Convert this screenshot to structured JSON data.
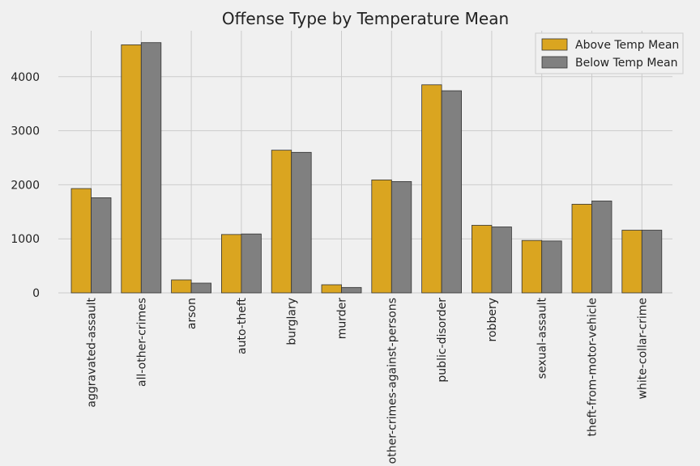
{
  "chart_data": {
    "type": "bar",
    "title": "Offense Type by Temperature Mean",
    "xlabel": "",
    "ylabel": "",
    "categories": [
      "aggravated-assault",
      "all-other-crimes",
      "arson",
      "auto-theft",
      "burglary",
      "murder",
      "other-crimes-against-persons",
      "public-disorder",
      "robbery",
      "sexual-assault",
      "theft-from-motor-vehicle",
      "white-collar-crime"
    ],
    "series": [
      {
        "name": "Above Temp Mean",
        "color": "#daa520",
        "values": [
          1930,
          4590,
          240,
          1080,
          2640,
          150,
          2090,
          3850,
          1250,
          970,
          1640,
          1160
        ]
      },
      {
        "name": "Below Temp Mean",
        "color": "#808080",
        "values": [
          1760,
          4630,
          180,
          1090,
          2600,
          100,
          2060,
          3740,
          1220,
          960,
          1700,
          1160
        ]
      }
    ],
    "ylim": [
      0,
      4850
    ],
    "yticks": [
      0,
      1000,
      2000,
      3000,
      4000
    ],
    "grid": true,
    "legend_position": "top-right",
    "bar_edge_color": "#333333",
    "background_color": "#f0f0f0",
    "grid_color": "#cbcbcb"
  }
}
